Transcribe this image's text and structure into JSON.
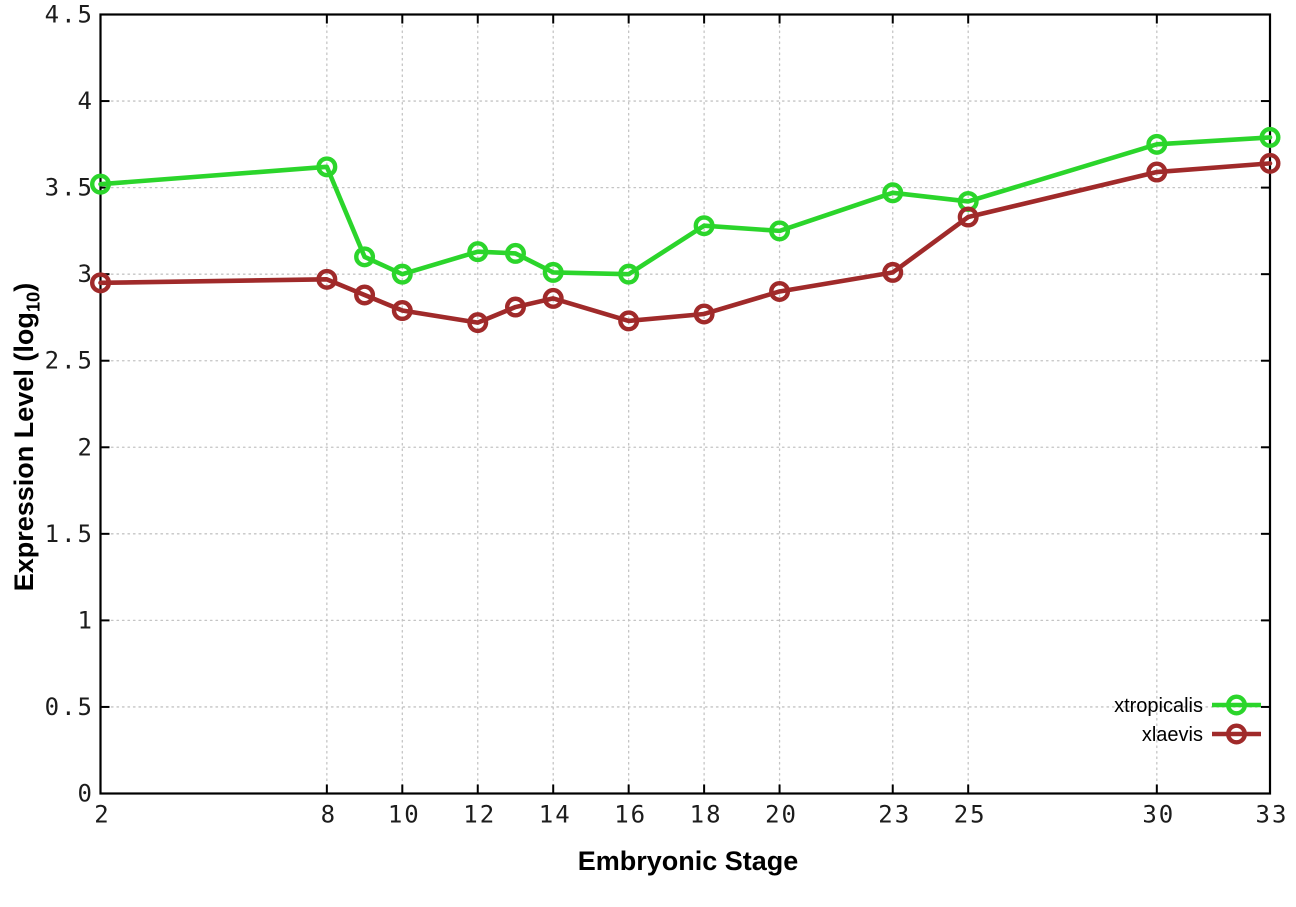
{
  "chart_data": {
    "type": "line",
    "title": "",
    "xlabel": "Embryonic Stage",
    "ylabel": {
      "prefix": "Expression Level (log",
      "sub": "10",
      "suffix": ")"
    },
    "xlim": [
      2,
      33
    ],
    "ylim": [
      0,
      4.5
    ],
    "grid": true,
    "legend_position": "inside-bottom-right",
    "x_tick_labels": [
      "2",
      "8",
      "10",
      "12",
      "14",
      "16",
      "18",
      "20",
      "23",
      "25",
      "30",
      "33"
    ],
    "y_tick_labels": [
      "0",
      "0.5",
      "1",
      "1.5",
      "2",
      "2.5",
      "3",
      "3.5",
      "4",
      "4.5"
    ],
    "x": [
      2,
      8,
      9,
      10,
      12,
      13,
      14,
      16,
      18,
      20,
      23,
      25,
      30,
      33
    ],
    "series": [
      {
        "name": "xtropicalis",
        "color": "#2bd52b",
        "marker": "open-circle",
        "values": [
          3.52,
          3.62,
          3.1,
          3.0,
          3.13,
          3.12,
          3.01,
          3.0,
          3.28,
          3.25,
          3.47,
          3.42,
          3.75,
          3.79
        ]
      },
      {
        "name": "xlaevis",
        "color": "#a02a2a",
        "marker": "open-circle",
        "values": [
          2.95,
          2.97,
          2.88,
          2.79,
          2.72,
          2.81,
          2.86,
          2.73,
          2.77,
          2.9,
          3.01,
          3.33,
          3.59,
          3.64
        ]
      }
    ],
    "colors": {
      "grid": "#c4c4c4",
      "border": "#000000",
      "tick_text": "#1c1c1c"
    }
  }
}
